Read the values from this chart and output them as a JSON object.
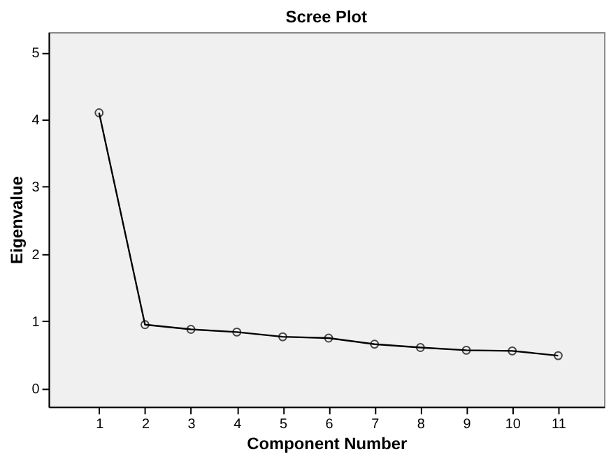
{
  "chart_data": {
    "type": "line",
    "title": "Scree Plot",
    "xlabel": "Component Number",
    "ylabel": "Eigenvalue",
    "x": [
      1,
      2,
      3,
      4,
      5,
      6,
      7,
      8,
      9,
      10,
      11
    ],
    "series": [
      {
        "color": "#000000",
        "values": [
          4.1,
          0.95,
          0.88,
          0.84,
          0.77,
          0.75,
          0.66,
          0.61,
          0.57,
          0.56,
          0.49
        ]
      }
    ],
    "xlim": [
      -0.1,
      12
    ],
    "xticks": [
      1,
      2,
      3,
      4,
      5,
      6,
      7,
      8,
      9,
      10,
      11
    ],
    "ylim": [
      -0.27,
      5.3
    ],
    "yticks": [
      0,
      1,
      2,
      3,
      4,
      5
    ],
    "marker": "circle",
    "line_style": "solid",
    "grid": false
  }
}
